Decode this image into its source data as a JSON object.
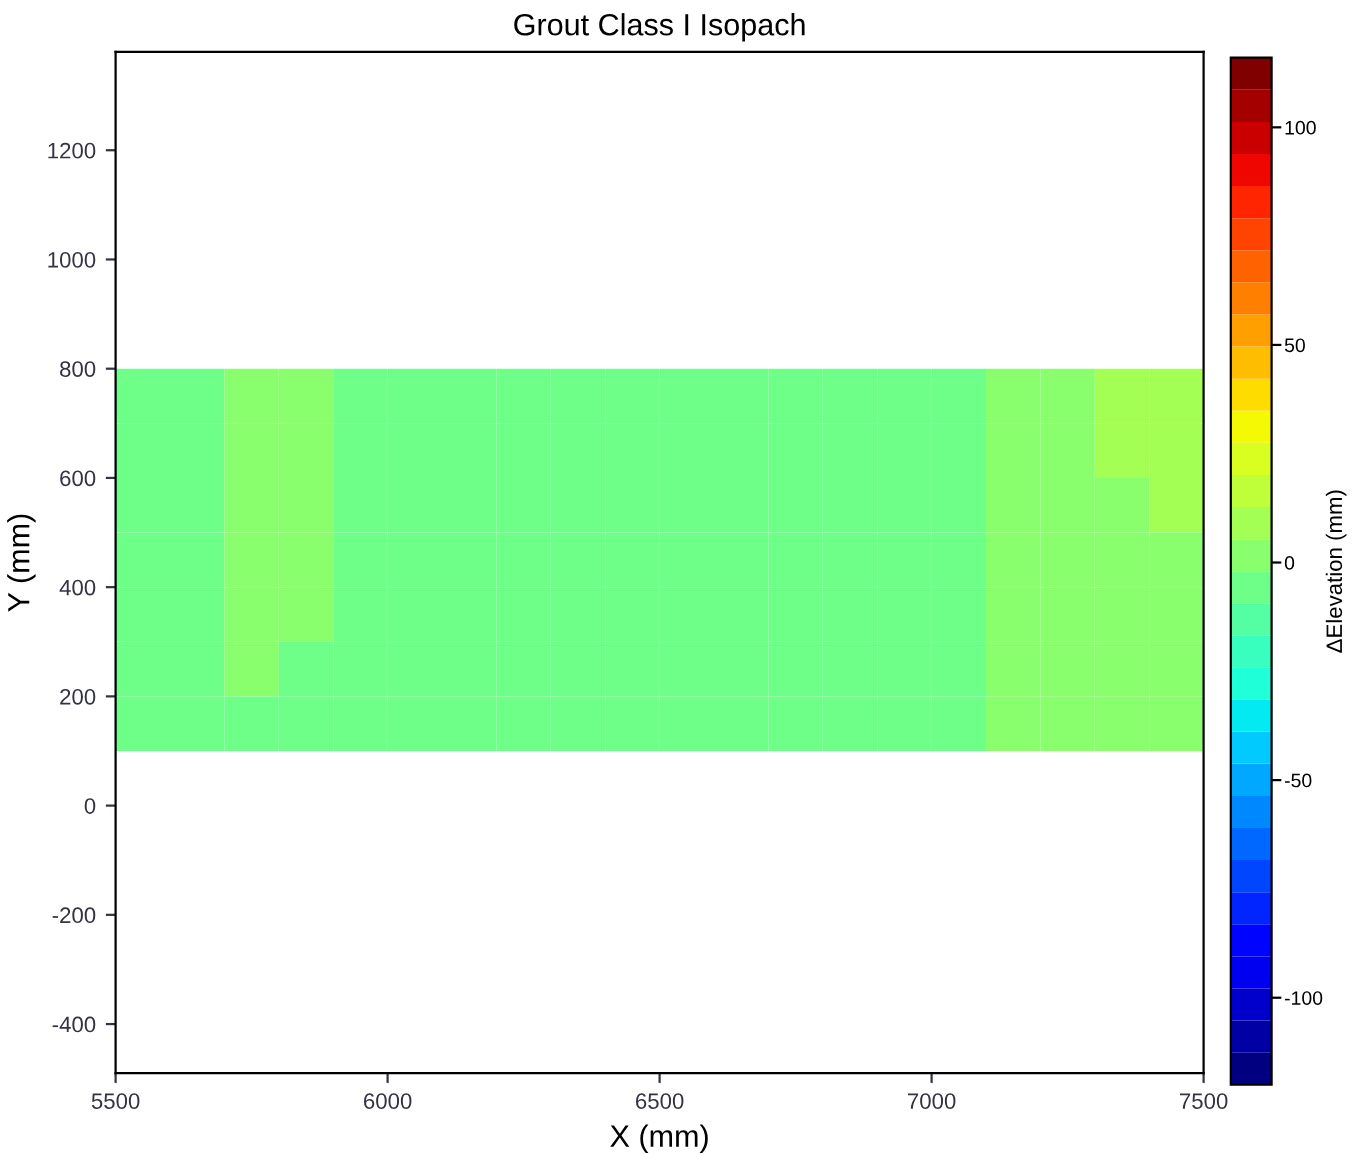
{
  "chart_data": {
    "type": "heatmap",
    "title": "Grout Class I Isopach",
    "xlabel": "X (mm)",
    "ylabel": "Y (mm)",
    "clabel": "ΔElevation (mm)",
    "x": [
      5550,
      5650,
      5750,
      5850,
      5950,
      6050,
      6150,
      6250,
      6350,
      6450,
      6550,
      6650,
      6750,
      6850,
      6950,
      7050,
      7150,
      7250,
      7350,
      7450
    ],
    "y": [
      750,
      650,
      550,
      450,
      350,
      250,
      150
    ],
    "cells": [
      [
        -3,
        -3,
        2,
        2,
        -3,
        -3,
        -3,
        -3,
        -3,
        -3,
        -3,
        -3,
        -3,
        -3,
        -3,
        -3,
        3,
        3,
        6,
        10
      ],
      [
        -3,
        -3,
        2,
        2,
        -3,
        -3,
        -3,
        -3,
        -3,
        -3,
        -3,
        -3,
        -3,
        -3,
        -3,
        -3,
        3,
        3,
        6,
        10
      ],
      [
        -3,
        -3,
        2,
        2,
        -3,
        -3,
        -3,
        -3,
        -3,
        -3,
        -3,
        -3,
        -3,
        -3,
        -3,
        -3,
        3,
        3,
        3,
        10
      ],
      [
        -3,
        -3,
        2,
        2,
        -3,
        -3,
        -3,
        -3,
        -3,
        -3,
        -3,
        -3,
        -3,
        -3,
        -3,
        -3,
        3,
        3,
        3,
        3
      ],
      [
        -3,
        -3,
        2,
        2,
        -3,
        -3,
        -3,
        -3,
        -3,
        -3,
        -3,
        -3,
        -3,
        -3,
        -3,
        -3,
        3,
        3,
        3,
        3
      ],
      [
        -3,
        -3,
        2,
        -3,
        -3,
        -3,
        -3,
        -3,
        -3,
        -3,
        -3,
        -3,
        -3,
        -3,
        -3,
        -3,
        3,
        3,
        3,
        3
      ],
      [
        -3,
        -3,
        -3,
        -3,
        -3,
        -3,
        -3,
        -3,
        -3,
        -3,
        -3,
        -3,
        -3,
        -3,
        -3,
        -3,
        3,
        3,
        3,
        3
      ]
    ],
    "xlim": [
      5500,
      7500
    ],
    "ylim": [
      -490,
      1380
    ],
    "xticks": [
      5500,
      6000,
      6500,
      7000,
      7500
    ],
    "yticks": [
      -400,
      -200,
      0,
      200,
      400,
      600,
      800,
      1000,
      1200
    ],
    "clim": [
      -120,
      116
    ],
    "cticks": [
      -100,
      -50,
      0,
      50,
      100
    ]
  }
}
